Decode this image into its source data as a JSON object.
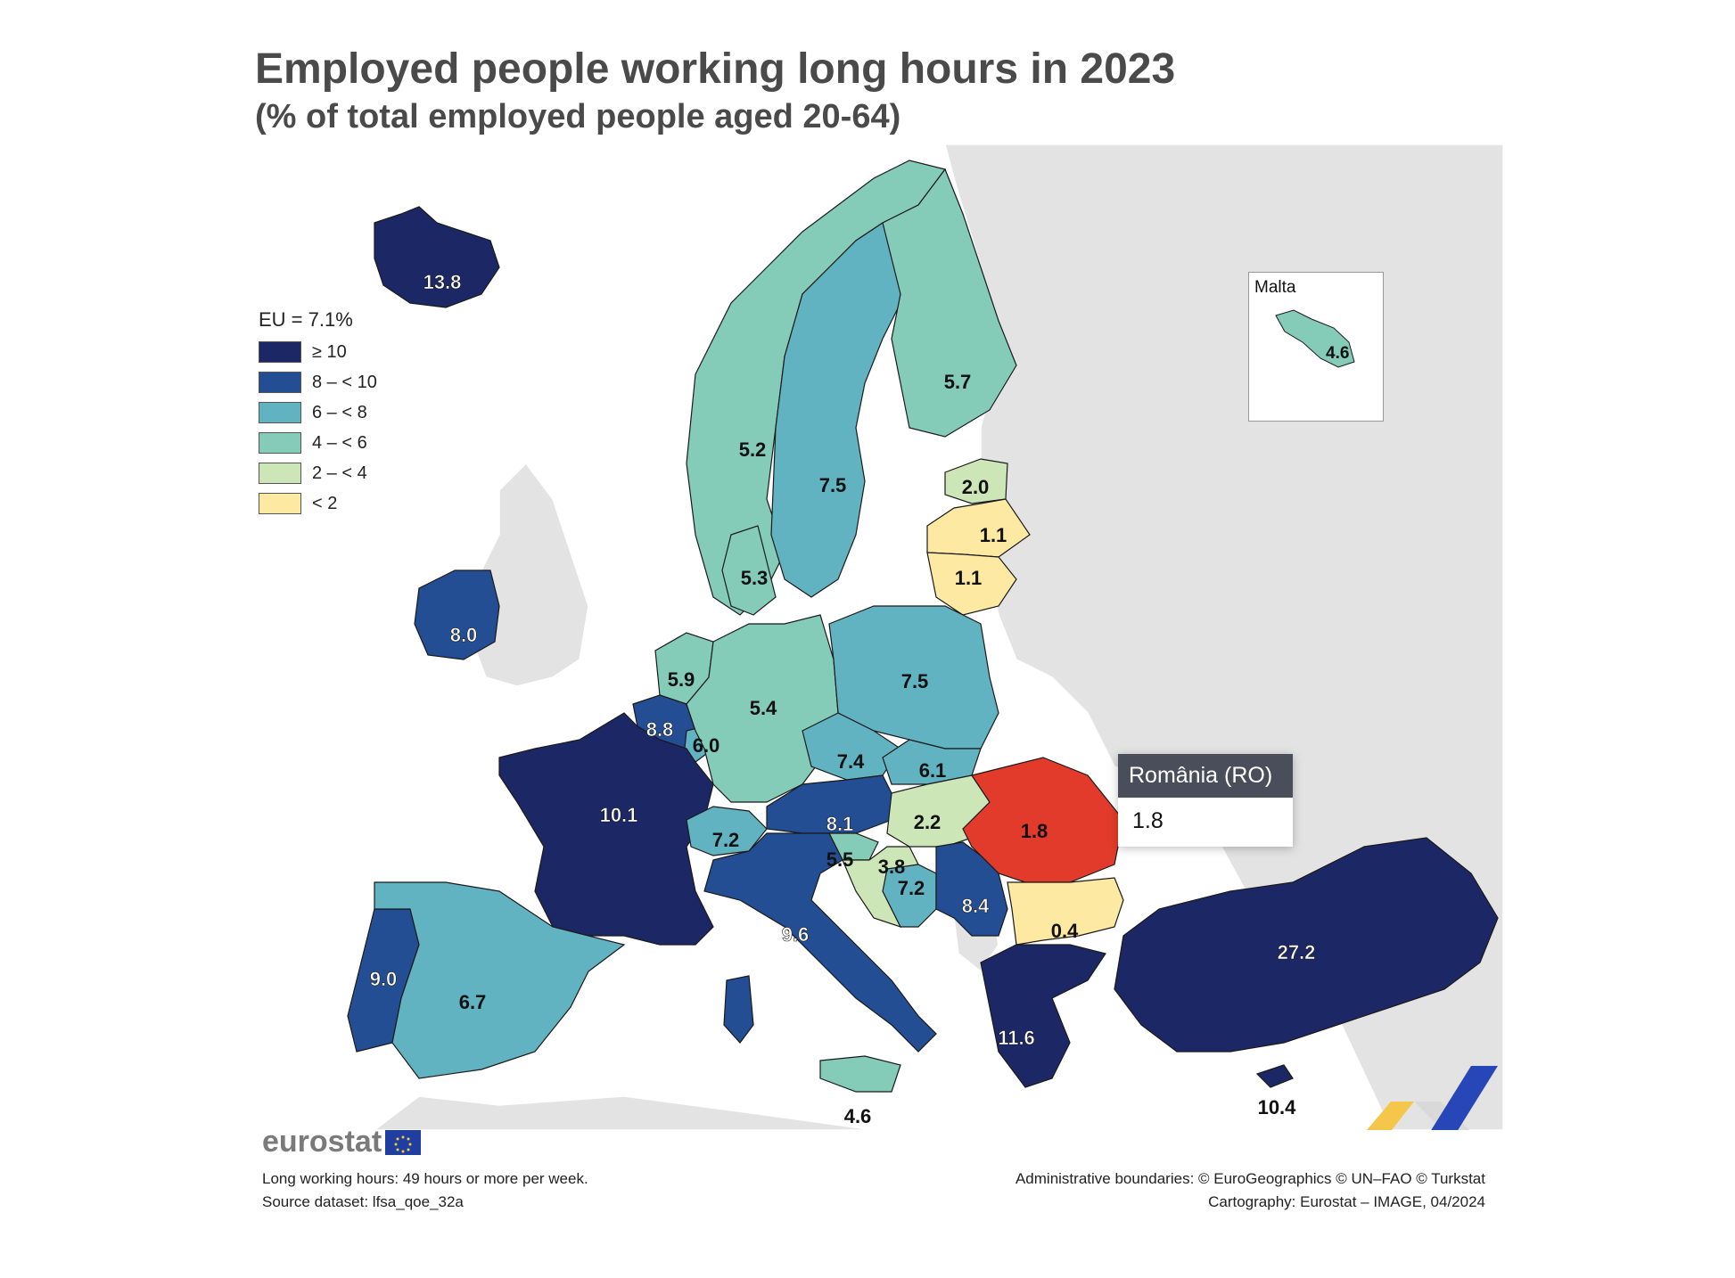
{
  "title": "Employed people working long hours in 2023",
  "subtitle": "(% of total employed people aged 20-64)",
  "legend": {
    "title": "EU = 7.1%",
    "items": [
      {
        "label": "≥ 10",
        "color": "#1c2766"
      },
      {
        "label": "8 – < 10",
        "color": "#234e94"
      },
      {
        "label": "6 – < 8",
        "color": "#62b3c2"
      },
      {
        "label": "4 – < 6",
        "color": "#84cbb8"
      },
      {
        "label": "2 – < 4",
        "color": "#cde6b8"
      },
      {
        "label": "< 2",
        "color": "#fde9a2"
      }
    ]
  },
  "highlight_color": "#e33b2b",
  "countries": [
    {
      "code": "IS",
      "value": "13.8"
    },
    {
      "code": "NO",
      "value": "5.2"
    },
    {
      "code": "SE",
      "value": "7.5"
    },
    {
      "code": "FI",
      "value": "5.7"
    },
    {
      "code": "EE",
      "value": "2.0"
    },
    {
      "code": "LV",
      "value": "1.1"
    },
    {
      "code": "LT",
      "value": "1.1"
    },
    {
      "code": "DK",
      "value": "5.3"
    },
    {
      "code": "IE",
      "value": "8.0"
    },
    {
      "code": "NL",
      "value": "5.9"
    },
    {
      "code": "BE",
      "value": "8.8"
    },
    {
      "code": "LU",
      "value": "6.0"
    },
    {
      "code": "DE",
      "value": "5.4"
    },
    {
      "code": "PL",
      "value": "7.5"
    },
    {
      "code": "CZ",
      "value": "7.4"
    },
    {
      "code": "SK",
      "value": "6.1"
    },
    {
      "code": "FR",
      "value": "10.1"
    },
    {
      "code": "CH",
      "value": "7.2"
    },
    {
      "code": "AT",
      "value": "8.1"
    },
    {
      "code": "HU",
      "value": "2.2"
    },
    {
      "code": "RO",
      "value": "1.8"
    },
    {
      "code": "SI",
      "value": "5.5"
    },
    {
      "code": "HR",
      "value": "3.8"
    },
    {
      "code": "BA",
      "value": "7.2"
    },
    {
      "code": "RS",
      "value": "8.4"
    },
    {
      "code": "BG",
      "value": "0.4"
    },
    {
      "code": "IT",
      "value": "9.6"
    },
    {
      "code": "PT",
      "value": "9.0"
    },
    {
      "code": "ES",
      "value": "6.7"
    },
    {
      "code": "EL",
      "value": "11.6"
    },
    {
      "code": "TR",
      "value": "27.2"
    },
    {
      "code": "CY",
      "value": "10.4"
    },
    {
      "code": "MT",
      "value": "4.6"
    },
    {
      "code": "IT-sicily",
      "value": "4.6"
    }
  ],
  "malta": {
    "label": "Malta",
    "value": "4.6"
  },
  "tooltip": {
    "title": "România (RO)",
    "value": "1.8"
  },
  "logo_text": "eurostat",
  "footer_left": [
    "Long working hours: 49 hours or more per week.",
    "Source dataset: lfsa_qoe_32a"
  ],
  "footer_right": [
    "Administrative boundaries: © EuroGeographics © UN–FAO © Turkstat",
    "Cartography: Eurostat – IMAGE, 04/2024"
  ]
}
